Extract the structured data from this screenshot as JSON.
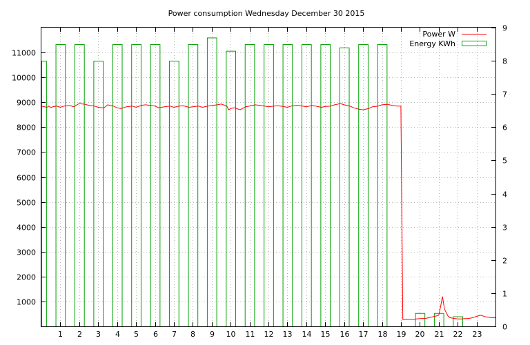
{
  "chart_data": {
    "type": "bar",
    "title": "Power consumption Wednesday December 30 2015",
    "xlim": [
      0,
      24
    ],
    "ylim": [
      0,
      12000
    ],
    "y2lim": [
      0,
      9
    ],
    "grid": true,
    "legend_position": "top-right",
    "x_ticks": [
      "1",
      "2",
      "3",
      "4",
      "5",
      "6",
      "7",
      "8",
      "9",
      "10",
      "11",
      "12",
      "13",
      "14",
      "15",
      "16",
      "17",
      "18",
      "19",
      "20",
      "21",
      "22",
      "23"
    ],
    "y_ticks": [
      "1000",
      "2000",
      "3000",
      "4000",
      "5000",
      "6000",
      "7000",
      "8000",
      "9000",
      "10000",
      "11000"
    ],
    "y2_ticks": [
      "0",
      "1",
      "2",
      "3",
      "4",
      "5",
      "6",
      "7",
      "8",
      "9"
    ],
    "series": [
      {
        "name": "Power W",
        "color": "#ff0000",
        "axis": "left",
        "x": [
          0.0,
          0.3,
          0.4,
          0.5,
          0.6,
          0.8,
          1.0,
          1.2,
          1.5,
          1.7,
          2.0,
          2.3,
          2.5,
          2.8,
          3.0,
          3.3,
          3.5,
          3.8,
          4.0,
          4.2,
          4.5,
          4.8,
          5.0,
          5.3,
          5.5,
          5.8,
          6.0,
          6.2,
          6.5,
          6.8,
          7.0,
          7.3,
          7.5,
          7.8,
          8.0,
          8.3,
          8.5,
          8.8,
          9.0,
          9.3,
          9.5,
          9.8,
          9.9,
          10.0,
          10.2,
          10.5,
          10.8,
          11.0,
          11.3,
          11.5,
          11.8,
          12.0,
          12.3,
          12.5,
          12.8,
          13.0,
          13.2,
          13.5,
          13.8,
          14.0,
          14.3,
          14.5,
          14.8,
          15.0,
          15.3,
          15.5,
          15.8,
          16.0,
          16.3,
          16.5,
          16.8,
          17.0,
          17.3,
          17.5,
          17.8,
          18.0,
          18.3,
          18.5,
          18.8,
          19.0,
          19.1,
          19.3,
          19.6,
          20.0,
          20.3,
          20.6,
          20.9,
          21.0,
          21.1,
          21.2,
          21.3,
          21.4,
          21.5,
          21.6,
          21.8,
          22.0,
          22.2,
          22.4,
          22.6,
          22.8,
          22.9,
          23.0,
          23.2,
          23.5,
          23.8,
          24.0
        ],
        "values": [
          8850,
          8800,
          8850,
          8780,
          8820,
          8850,
          8800,
          8850,
          8870,
          8820,
          8950,
          8920,
          8880,
          8850,
          8800,
          8770,
          8900,
          8850,
          8780,
          8750,
          8820,
          8850,
          8800,
          8880,
          8900,
          8870,
          8850,
          8780,
          8820,
          8850,
          8800,
          8850,
          8860,
          8800,
          8820,
          8850,
          8800,
          8850,
          8870,
          8900,
          8930,
          8850,
          8700,
          8750,
          8780,
          8700,
          8820,
          8850,
          8900,
          8880,
          8850,
          8820,
          8850,
          8860,
          8830,
          8800,
          8850,
          8880,
          8850,
          8820,
          8870,
          8850,
          8800,
          8830,
          8850,
          8900,
          8950,
          8900,
          8850,
          8780,
          8720,
          8700,
          8750,
          8820,
          8850,
          8900,
          8920,
          8880,
          8850,
          8850,
          280,
          290,
          280,
          310,
          320,
          370,
          420,
          450,
          800,
          1200,
          700,
          550,
          400,
          350,
          320,
          300,
          300,
          310,
          320,
          350,
          380,
          400,
          450,
          380,
          350,
          350
        ]
      },
      {
        "name": "Energy KWh",
        "color": "#00a000",
        "axis": "right",
        "bars": [
          {
            "x0": 0.0,
            "x1": 0.25,
            "v": 8.0
          },
          {
            "x0": 0.75,
            "x1": 1.25,
            "v": 8.5
          },
          {
            "x0": 1.75,
            "x1": 2.25,
            "v": 8.5
          },
          {
            "x0": 2.75,
            "x1": 3.25,
            "v": 8.0
          },
          {
            "x0": 3.75,
            "x1": 4.25,
            "v": 8.5
          },
          {
            "x0": 4.75,
            "x1": 5.25,
            "v": 8.5
          },
          {
            "x0": 5.75,
            "x1": 6.25,
            "v": 8.5
          },
          {
            "x0": 6.75,
            "x1": 7.25,
            "v": 8.0
          },
          {
            "x0": 7.75,
            "x1": 8.25,
            "v": 8.5
          },
          {
            "x0": 8.75,
            "x1": 9.25,
            "v": 8.7
          },
          {
            "x0": 9.75,
            "x1": 10.25,
            "v": 8.3
          },
          {
            "x0": 10.75,
            "x1": 11.25,
            "v": 8.5
          },
          {
            "x0": 11.75,
            "x1": 12.25,
            "v": 8.5
          },
          {
            "x0": 12.75,
            "x1": 13.25,
            "v": 8.5
          },
          {
            "x0": 13.75,
            "x1": 14.25,
            "v": 8.5
          },
          {
            "x0": 14.75,
            "x1": 15.25,
            "v": 8.5
          },
          {
            "x0": 15.75,
            "x1": 16.25,
            "v": 8.4
          },
          {
            "x0": 16.75,
            "x1": 17.25,
            "v": 8.5
          },
          {
            "x0": 17.75,
            "x1": 18.25,
            "v": 8.5
          },
          {
            "x0": 19.75,
            "x1": 20.25,
            "v": 0.4
          },
          {
            "x0": 20.75,
            "x1": 21.25,
            "v": 0.4
          },
          {
            "x0": 21.75,
            "x1": 22.25,
            "v": 0.3
          }
        ]
      }
    ]
  }
}
